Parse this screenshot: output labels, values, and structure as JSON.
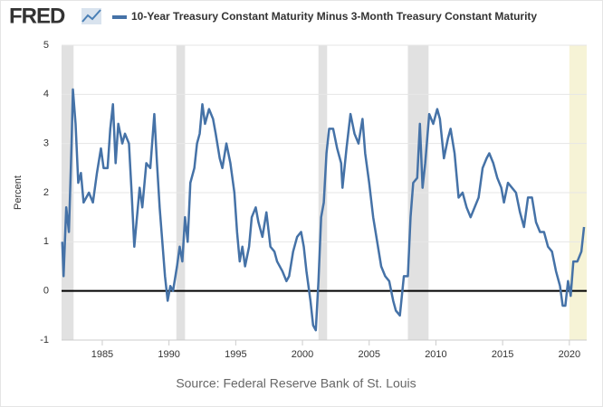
{
  "chart_data": {
    "type": "line",
    "logo": "FRED",
    "ylabel": "Percent",
    "source": "Source: Federal Reserve Bank of St. Louis",
    "xlim": [
      1981.95,
      2021.3
    ],
    "ylim": [
      -1,
      5
    ],
    "xticks": [
      1985,
      1990,
      1995,
      2000,
      2005,
      2010,
      2015,
      2020
    ],
    "yticks": [
      -1,
      0,
      1,
      2,
      3,
      4,
      5
    ],
    "grid": true,
    "reference_line": 0,
    "recession_color": "#e1e1e1",
    "recessions": [
      {
        "start": 1981.95,
        "end": 1982.85
      },
      {
        "start": 1990.55,
        "end": 1991.2
      },
      {
        "start": 2001.2,
        "end": 2001.85
      },
      {
        "start": 2007.9,
        "end": 2009.45
      },
      {
        "start": 2020.0,
        "end": 2021.3,
        "color": "#f6f3d6"
      }
    ],
    "x": [
      1982.0,
      1982.1,
      1982.3,
      1982.5,
      1982.7,
      1982.8,
      1983.0,
      1983.2,
      1983.4,
      1983.6,
      1984.0,
      1984.3,
      1984.6,
      1984.9,
      1985.1,
      1985.4,
      1985.6,
      1985.8,
      1986.0,
      1986.2,
      1986.5,
      1986.7,
      1987.0,
      1987.2,
      1987.4,
      1987.6,
      1987.8,
      1988.0,
      1988.3,
      1988.6,
      1988.9,
      1989.1,
      1989.3,
      1989.5,
      1989.7,
      1989.9,
      1990.1,
      1990.3,
      1990.6,
      1990.8,
      1991.0,
      1991.2,
      1991.4,
      1991.6,
      1991.9,
      1992.1,
      1992.3,
      1992.5,
      1992.7,
      1993.0,
      1993.3,
      1993.5,
      1993.8,
      1994.0,
      1994.3,
      1994.6,
      1994.9,
      1995.1,
      1995.3,
      1995.5,
      1995.7,
      1996.0,
      1996.2,
      1996.5,
      1996.7,
      1997.0,
      1997.3,
      1997.6,
      1997.9,
      1998.1,
      1998.5,
      1998.8,
      1999.0,
      1999.3,
      1999.6,
      1999.9,
      2000.1,
      2000.3,
      2000.6,
      2000.8,
      2001.0,
      2001.2,
      2001.4,
      2001.6,
      2001.8,
      2002.0,
      2002.3,
      2002.6,
      2002.9,
      2003.0,
      2003.3,
      2003.6,
      2003.9,
      2004.2,
      2004.5,
      2004.7,
      2005.0,
      2005.3,
      2005.6,
      2005.9,
      2006.2,
      2006.5,
      2006.8,
      2007.0,
      2007.3,
      2007.6,
      2007.9,
      2008.1,
      2008.3,
      2008.6,
      2008.8,
      2009.0,
      2009.2,
      2009.5,
      2009.8,
      2010.1,
      2010.3,
      2010.6,
      2010.9,
      2011.1,
      2011.4,
      2011.7,
      2012.0,
      2012.3,
      2012.6,
      2012.9,
      2013.2,
      2013.5,
      2013.8,
      2014.0,
      2014.3,
      2014.6,
      2014.9,
      2015.1,
      2015.4,
      2015.7,
      2016.0,
      2016.3,
      2016.6,
      2016.9,
      2017.2,
      2017.5,
      2017.8,
      2018.1,
      2018.4,
      2018.7,
      2019.0,
      2019.3,
      2019.5,
      2019.7,
      2019.9,
      2020.1,
      2020.3,
      2020.6,
      2020.9,
      2021.1
    ],
    "series": [
      {
        "name": "10-Year Treasury Constant Maturity Minus 3-Month Treasury Constant Maturity",
        "color": "#4572a7",
        "values": [
          1.0,
          0.3,
          1.7,
          1.2,
          3.0,
          4.1,
          3.4,
          2.2,
          2.4,
          1.8,
          2.0,
          1.8,
          2.4,
          2.9,
          2.5,
          2.5,
          3.3,
          3.8,
          2.6,
          3.4,
          3.0,
          3.2,
          3.0,
          2.0,
          0.9,
          1.5,
          2.1,
          1.7,
          2.6,
          2.5,
          3.6,
          2.6,
          1.7,
          1.0,
          0.3,
          -0.2,
          0.1,
          0.0,
          0.5,
          0.9,
          0.6,
          1.5,
          1.0,
          2.2,
          2.5,
          3.0,
          3.2,
          3.8,
          3.4,
          3.7,
          3.5,
          3.2,
          2.7,
          2.5,
          3.0,
          2.6,
          2.0,
          1.2,
          0.6,
          0.9,
          0.5,
          0.9,
          1.5,
          1.7,
          1.4,
          1.1,
          1.6,
          0.9,
          0.8,
          0.6,
          0.4,
          0.2,
          0.3,
          0.8,
          1.1,
          1.2,
          0.9,
          0.4,
          -0.2,
          -0.7,
          -0.8,
          0.2,
          1.5,
          1.8,
          2.8,
          3.3,
          3.3,
          2.9,
          2.6,
          2.1,
          2.9,
          3.6,
          3.2,
          3.0,
          3.5,
          2.8,
          2.2,
          1.5,
          1.0,
          0.5,
          0.3,
          0.2,
          -0.2,
          -0.4,
          -0.5,
          0.3,
          0.3,
          1.5,
          2.2,
          2.3,
          3.4,
          2.1,
          2.6,
          3.6,
          3.4,
          3.7,
          3.5,
          2.7,
          3.1,
          3.3,
          2.8,
          1.9,
          2.0,
          1.7,
          1.5,
          1.7,
          1.9,
          2.5,
          2.7,
          2.8,
          2.6,
          2.3,
          2.1,
          1.8,
          2.2,
          2.1,
          2.0,
          1.6,
          1.3,
          1.9,
          1.9,
          1.4,
          1.2,
          1.2,
          0.9,
          0.8,
          0.4,
          0.1,
          -0.3,
          -0.3,
          0.2,
          -0.1,
          0.6,
          0.6,
          0.8,
          1.3
        ]
      }
    ]
  }
}
